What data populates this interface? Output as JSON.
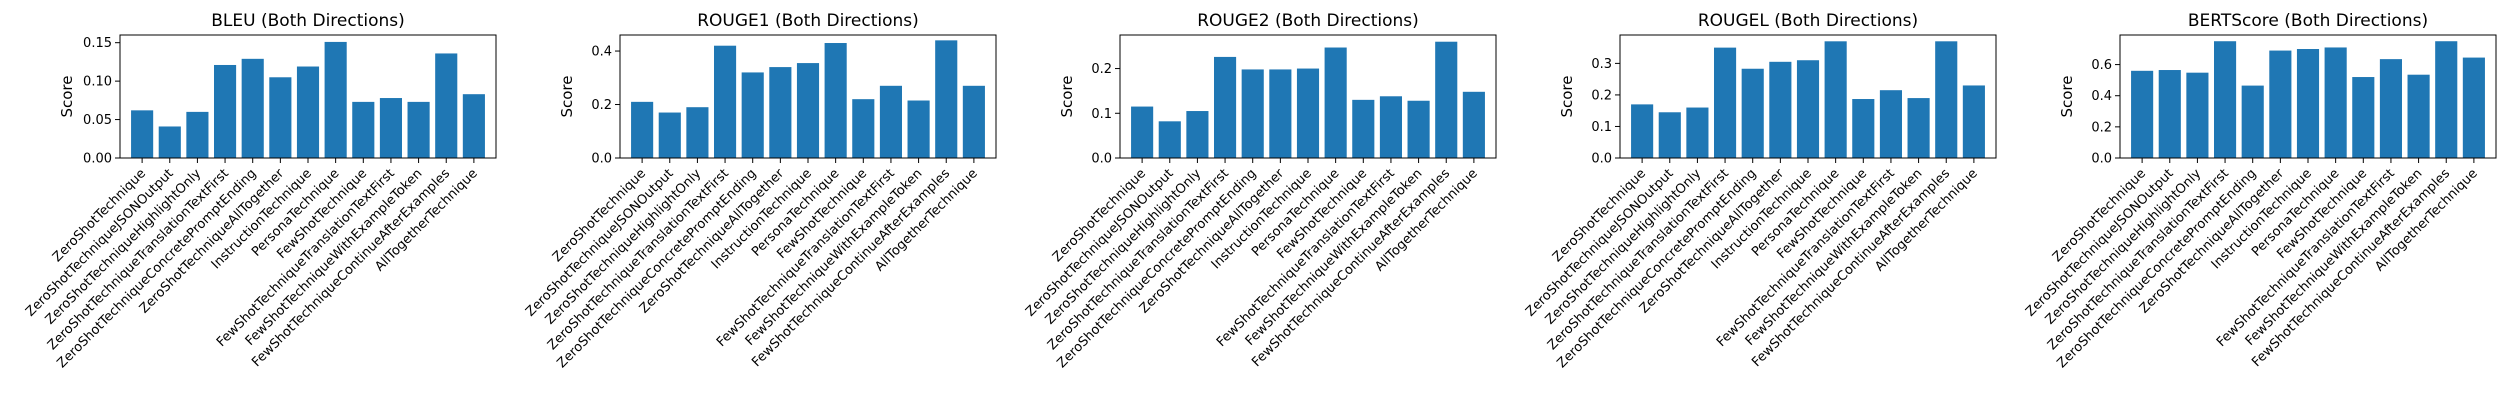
{
  "colors": {
    "bar": "#1f77b4",
    "axis": "#000000",
    "background": "#ffffff"
  },
  "chart_data": [
    {
      "type": "bar",
      "title": "BLEU (Both Directions)",
      "xlabel": "",
      "ylabel": "Score",
      "ylim": [
        0,
        0.16
      ],
      "yticks": [
        "0.00",
        "0.05",
        "0.10",
        "0.15"
      ],
      "ytick_values": [
        0,
        0.05,
        0.1,
        0.15
      ],
      "categories": [
        "ZeroShotTechnique",
        "ZeroShotTechniqueJSONOutput",
        "ZeroShotTechniqueHighlightOnly",
        "ZeroShotTechniqueTranslationTextFirst",
        "ZeroShotTechniqueConcretePromptEnding",
        "ZeroShotTechniqueAllTogether",
        "InstructionTechnique",
        "PersonaTechnique",
        "FewShotTechnique",
        "FewShotTechniqueTranslationTextFirst",
        "FewShotTechniqueWithExampleToken",
        "FewShotTechniqueContinueAfterExamples",
        "AllTogetherTechnique"
      ],
      "values": [
        0.062,
        0.041,
        0.06,
        0.121,
        0.129,
        0.105,
        0.119,
        0.151,
        0.073,
        0.078,
        0.073,
        0.136,
        0.083
      ],
      "grid": false
    },
    {
      "type": "bar",
      "title": "ROUGE1 (Both Directions)",
      "xlabel": "",
      "ylabel": "Score",
      "ylim": [
        0,
        0.46
      ],
      "yticks": [
        "0.0",
        "0.2",
        "0.4"
      ],
      "ytick_values": [
        0,
        0.2,
        0.4
      ],
      "categories": [
        "ZeroShotTechnique",
        "ZeroShotTechniqueJSONOutput",
        "ZeroShotTechniqueHighlightOnly",
        "ZeroShotTechniqueTranslationTextFirst",
        "ZeroShotTechniqueConcretePromptEnding",
        "ZeroShotTechniqueAllTogether",
        "InstructionTechnique",
        "PersonaTechnique",
        "FewShotTechnique",
        "FewShotTechniqueTranslationTextFirst",
        "FewShotTechniqueWithExampleToken",
        "FewShotTechniqueContinueAfterExamples",
        "AllTogetherTechnique"
      ],
      "values": [
        0.21,
        0.17,
        0.19,
        0.42,
        0.32,
        0.34,
        0.355,
        0.43,
        0.22,
        0.27,
        0.215,
        0.44,
        0.27
      ],
      "grid": false
    },
    {
      "type": "bar",
      "title": "ROUGE2 (Both Directions)",
      "xlabel": "",
      "ylabel": "Score",
      "ylim": [
        0,
        0.275
      ],
      "yticks": [
        "0.0",
        "0.1",
        "0.2"
      ],
      "ytick_values": [
        0,
        0.1,
        0.2
      ],
      "categories": [
        "ZeroShotTechnique",
        "ZeroShotTechniqueJSONOutput",
        "ZeroShotTechniqueHighlightOnly",
        "ZeroShotTechniqueTranslationTextFirst",
        "ZeroShotTechniqueConcretePromptEnding",
        "ZeroShotTechniqueAllTogether",
        "InstructionTechnique",
        "PersonaTechnique",
        "FewShotTechnique",
        "FewShotTechniqueTranslationTextFirst",
        "FewShotTechniqueWithExampleToken",
        "FewShotTechniqueContinueAfterExamples",
        "AllTogetherTechnique"
      ],
      "values": [
        0.115,
        0.082,
        0.105,
        0.226,
        0.198,
        0.198,
        0.2,
        0.247,
        0.13,
        0.138,
        0.128,
        0.26,
        0.148
      ],
      "grid": false
    },
    {
      "type": "bar",
      "title": "ROUGEL (Both Directions)",
      "xlabel": "",
      "ylabel": "Score",
      "ylim": [
        0,
        0.39
      ],
      "yticks": [
        "0.0",
        "0.1",
        "0.2",
        "0.3"
      ],
      "ytick_values": [
        0,
        0.1,
        0.2,
        0.3
      ],
      "categories": [
        "ZeroShotTechnique",
        "ZeroShotTechniqueJSONOutput",
        "ZeroShotTechniqueHighlightOnly",
        "ZeroShotTechniqueTranslationTextFirst",
        "ZeroShotTechniqueConcretePromptEnding",
        "ZeroShotTechniqueAllTogether",
        "InstructionTechnique",
        "PersonaTechnique",
        "FewShotTechnique",
        "FewShotTechniqueTranslationTextFirst",
        "FewShotTechniqueWithExampleToken",
        "FewShotTechniqueContinueAfterExamples",
        "AllTogetherTechnique"
      ],
      "values": [
        0.17,
        0.145,
        0.16,
        0.35,
        0.283,
        0.305,
        0.31,
        0.37,
        0.187,
        0.215,
        0.19,
        0.37,
        0.23
      ],
      "grid": false
    },
    {
      "type": "bar",
      "title": "BERTScore (Both Directions)",
      "xlabel": "",
      "ylabel": "Score",
      "ylim": [
        0,
        0.79
      ],
      "yticks": [
        "0.0",
        "0.2",
        "0.4",
        "0.6"
      ],
      "ytick_values": [
        0,
        0.2,
        0.4,
        0.6
      ],
      "categories": [
        "ZeroShotTechnique",
        "ZeroShotTechniqueJSONOutput",
        "ZeroShotTechniqueHighlightOnly",
        "ZeroShotTechniqueTranslationTextFirst",
        "ZeroShotTechniqueConcretePromptEnding",
        "ZeroShotTechniqueAllTogether",
        "InstructionTechnique",
        "PersonaTechnique",
        "FewShotTechnique",
        "FewShotTechniqueTranslationTextFirst",
        "FewShotTechniqueWithExampleToken",
        "FewShotTechniqueContinueAfterExamples",
        "AllTogetherTechnique"
      ],
      "values": [
        0.56,
        0.565,
        0.548,
        0.75,
        0.465,
        0.69,
        0.7,
        0.71,
        0.52,
        0.635,
        0.535,
        0.75,
        0.645
      ],
      "grid": false
    }
  ]
}
